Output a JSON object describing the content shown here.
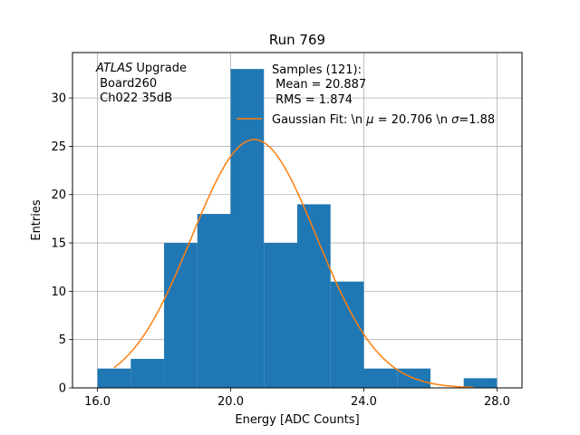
{
  "chart_data": {
    "type": "bar",
    "title": "Run 769",
    "xlabel": "Energy [ADC Counts]",
    "ylabel": "Entries",
    "xlim": [
      15.25,
      28.75
    ],
    "ylim": [
      0,
      34.7
    ],
    "xticks": [
      16,
      20,
      24,
      28
    ],
    "xtick_labels": [
      "16.0",
      "20.0",
      "24.0",
      "28.0"
    ],
    "yticks": [
      0,
      5,
      10,
      15,
      20,
      25,
      30
    ],
    "ytick_labels": [
      "0",
      "5",
      "10",
      "15",
      "20",
      "25",
      "30"
    ],
    "grid": true,
    "bin_edges": [
      16,
      17,
      18,
      19,
      20,
      21,
      22,
      23,
      24,
      25,
      26,
      27,
      28
    ],
    "counts": [
      2,
      3,
      15,
      18,
      33,
      15,
      19,
      11,
      2,
      2,
      0,
      1
    ],
    "bar_color": "#1f77b4",
    "fit": {
      "label": "Gaussian Fit: \\n μ = 20.706 \\n σ=1.88",
      "mu": 20.706,
      "sigma": 1.88,
      "amplitude": 25.7,
      "x_range": [
        16.5,
        27.3
      ],
      "color": "#ff7f0e"
    },
    "annotations": {
      "atlas_italic": "ATLAS",
      "atlas_rest": " Upgrade",
      "board": " Board260",
      "channel": " Ch022 35dB"
    },
    "legend": {
      "placement": "top-right",
      "samples": "Samples (121):",
      "mean": " Mean = 20.887",
      "rms": " RMS = 1.874",
      "fit_prefix": "Gaussian Fit: \\n ",
      "mu_symbol": "μ",
      "mu_value": " = 20.706 \\n ",
      "sigma_symbol": "σ",
      "sigma_value": "=1.88"
    }
  }
}
